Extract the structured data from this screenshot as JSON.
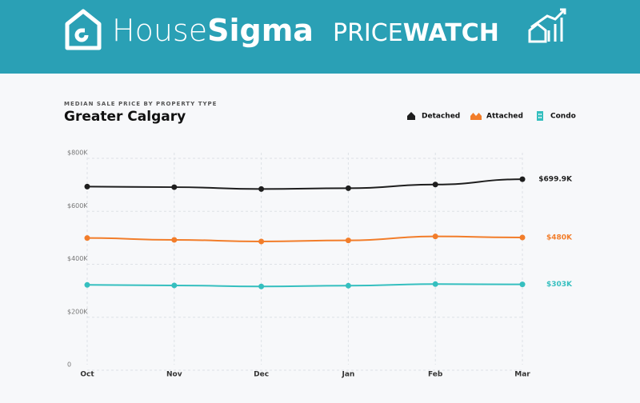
{
  "header": {
    "brand_light": "House",
    "brand_bold": "Sigma",
    "product_light": "PRICE",
    "product_bold": "WATCH"
  },
  "chart_data": {
    "type": "line",
    "subtitle": "MEDIAN SALE PRICE BY PROPERTY TYPE",
    "title": "Greater Calgary",
    "categories": [
      "Oct",
      "Nov",
      "Dec",
      "Jan",
      "Feb",
      "Mar"
    ],
    "ylim": [
      0,
      800000
    ],
    "yticks": [
      0,
      {
        "value": 200000,
        "label": "$200K"
      },
      {
        "value": 400000,
        "label": "$400K"
      },
      {
        "value": 600000,
        "label": "$600K"
      },
      {
        "value": 800000,
        "label": "$800K"
      }
    ],
    "grid": true,
    "legend": "top-right",
    "series": [
      {
        "name": "Detached",
        "color": "#1e1e1e",
        "values": [
          672000,
          670000,
          663000,
          666000,
          680000,
          699900
        ],
        "value_labels": [
          null,
          null,
          null,
          null,
          null,
          "$699.9K"
        ]
      },
      {
        "name": "Attached",
        "color": "#f27d2a",
        "values": [
          478000,
          471000,
          465000,
          469000,
          484000,
          480000
        ],
        "value_labels": [
          null,
          null,
          null,
          null,
          null,
          "$480K"
        ]
      },
      {
        "name": "Condo",
        "color": "#35bfbf",
        "values": [
          301000,
          299000,
          295000,
          298000,
          304000,
          303000
        ],
        "value_labels": [
          null,
          null,
          null,
          null,
          null,
          "$303K"
        ]
      }
    ]
  }
}
